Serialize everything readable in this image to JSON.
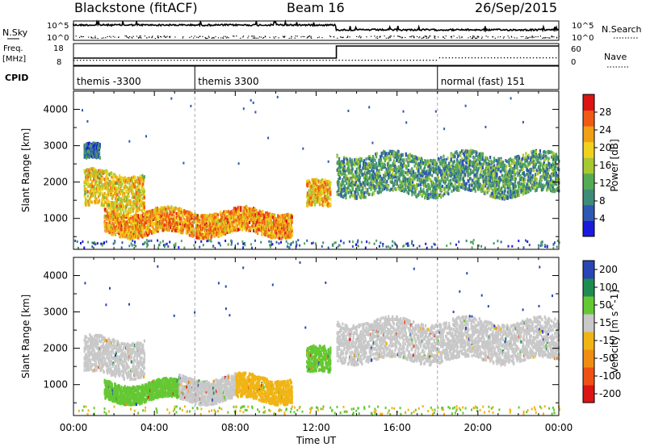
{
  "header": {
    "radar": "Blackstone (fitACF)",
    "beam": "Beam 16",
    "date": "26/Sep/2015"
  },
  "params": {
    "nsky_label": "N.Sky",
    "nsearch_label": "N.Search",
    "freq_label": "Freq.",
    "freq_unit": "[MHz]",
    "nave_label": "Nave",
    "cpid_label": "CPID",
    "noise_ticks": [
      "10^5",
      "10^0"
    ],
    "freq_ticks": [
      "18",
      "8"
    ],
    "nave_ticks": [
      "60",
      "0"
    ]
  },
  "cpid": {
    "segments": [
      {
        "label": "themis -3300",
        "start_hour": 0
      },
      {
        "label": "themis 3300",
        "start_hour": 6
      },
      {
        "label": "normal (fast) 151",
        "start_hour": 18
      }
    ]
  },
  "chart_data": [
    {
      "type": "heatmap",
      "title": "",
      "xlabel": "",
      "ylabel": "Slant Range [km]",
      "xlim": [
        0,
        24
      ],
      "ylim": [
        150,
        4500
      ],
      "yticks": [
        1000,
        2000,
        3000,
        4000
      ],
      "colorbar": {
        "label": "Power [dB]",
        "range": [
          0,
          32
        ],
        "ticks": [
          "4",
          "8",
          "12",
          "16",
          "20",
          "24",
          "28"
        ],
        "colors": [
          "#1a1adc",
          "#2e58b4",
          "#3e8c78",
          "#55aa55",
          "#a8c832",
          "#f0d21e",
          "#f0a014",
          "#f05a14",
          "#dc1414"
        ]
      },
      "regions": [
        {
          "t_start": 0.5,
          "t_end": 1.3,
          "range_km": [
            2600,
            3000
          ],
          "power_db": 6
        },
        {
          "t_start": 0.5,
          "t_end": 3.5,
          "range_km": [
            1300,
            2300
          ],
          "power_db": 20
        },
        {
          "t_start": 1.5,
          "t_end": 10.8,
          "range_km": [
            600,
            1250
          ],
          "power_db": 24
        },
        {
          "t_start": 11.5,
          "t_end": 12.7,
          "range_km": [
            1300,
            2000
          ],
          "power_db": 22
        },
        {
          "t_start": 13.0,
          "t_end": 24.0,
          "range_km": [
            1700,
            2800
          ],
          "power_db": 10
        }
      ]
    },
    {
      "type": "heatmap",
      "title": "",
      "xlabel": "Time UT",
      "ylabel": "Slant Range [km]",
      "xlim": [
        0,
        24
      ],
      "ylim": [
        150,
        4500
      ],
      "yticks": [
        1000,
        2000,
        3000,
        4000
      ],
      "xticks": [
        "00:00",
        "04:00",
        "08:00",
        "12:00",
        "16:00",
        "20:00",
        "00:00"
      ],
      "colorbar": {
        "label": "Velocity [m s^-1]",
        "ticks": [
          "200",
          "100",
          "50",
          "15",
          "-15",
          "-50",
          "-100",
          "-200"
        ],
        "colors": [
          "#2846b4",
          "#1e8c50",
          "#64c832",
          "#c8c8c8",
          "#f0b414",
          "#f08c14",
          "#f05014",
          "#dc1414"
        ]
      },
      "regions": [
        {
          "t_start": 0.5,
          "t_end": 3.5,
          "range_km": [
            1300,
            2300
          ],
          "velocity": "-15 to 15"
        },
        {
          "t_start": 1.5,
          "t_end": 5.2,
          "range_km": [
            600,
            1100
          ],
          "velocity": "15 to 50"
        },
        {
          "t_start": 5.2,
          "t_end": 8.0,
          "range_km": [
            600,
            1250
          ],
          "velocity": "-15 to 15"
        },
        {
          "t_start": 8.0,
          "t_end": 10.8,
          "range_km": [
            600,
            1250
          ],
          "velocity": "-15 to -50"
        },
        {
          "t_start": 11.5,
          "t_end": 12.7,
          "range_km": [
            1300,
            2000
          ],
          "velocity": "15 to 50"
        },
        {
          "t_start": 13.0,
          "t_end": 24.0,
          "range_km": [
            1700,
            2800
          ],
          "velocity": "-15 to 15"
        }
      ]
    }
  ]
}
